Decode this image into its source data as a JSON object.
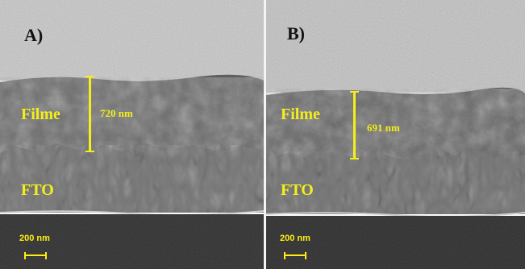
{
  "colors": {
    "annotation": "#f4ef19",
    "scale": "#ffee10",
    "letter": "#111111"
  },
  "panels": [
    {
      "letter": "A)",
      "film_label": "Filme",
      "substrate_label": "FTO",
      "thickness": "720 nm",
      "scale_bar": "200 nm"
    },
    {
      "letter": "B)",
      "film_label": "Filme",
      "substrate_label": "FTO",
      "thickness": "691 nm",
      "scale_bar": "200 nm"
    }
  ]
}
